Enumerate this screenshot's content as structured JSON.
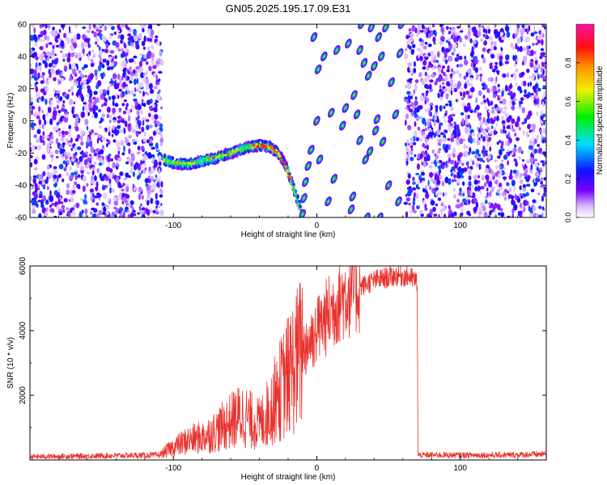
{
  "title": "GN05.2025.195.17.09.E31",
  "chart_data": [
    {
      "type": "heatmap",
      "xlabel": "Height of straight line (km)",
      "ylabel": "Frequency (Hz)",
      "xlim": [
        -200,
        160
      ],
      "ylim": [
        -60,
        60
      ],
      "xticks": [
        -100,
        0,
        100
      ],
      "yticks": [
        -60,
        -40,
        -20,
        0,
        20,
        40,
        60
      ],
      "colorbar": {
        "label": "Normalized spectral amplitude",
        "range": [
          0,
          1
        ],
        "ticks": [
          0.0,
          0.2,
          0.4,
          0.6,
          0.8
        ],
        "colormap": "rainbow (white-violet-blue-cyan-green-yellow-orange-red-pink)"
      },
      "noise_regions_x": [
        [
          -200,
          -108
        ],
        [
          62,
          160
        ]
      ],
      "empty_region_x": [
        -108,
        62
      ],
      "main_track": {
        "x": [
          -107,
          -100,
          -90,
          -80,
          -70,
          -60,
          -50,
          -40,
          -33,
          -27,
          -22,
          -18,
          -15,
          -12,
          -10
        ],
        "y": [
          -24,
          -26,
          -27,
          -25,
          -23,
          -20,
          -17,
          -15,
          -16,
          -20,
          -27,
          -37,
          -45,
          -53,
          -60
        ],
        "peak_amplitude": 0.95
      },
      "aliased_blobs": {
        "x": [
          -10,
          -9,
          -8,
          -6,
          -4,
          -2,
          0,
          1,
          2,
          5,
          8,
          10,
          12,
          14,
          18,
          20,
          22,
          24,
          25,
          26,
          28,
          30,
          30,
          31,
          33,
          34,
          35,
          36,
          37,
          38,
          40,
          41,
          42,
          43,
          44,
          45,
          46,
          48,
          50,
          52,
          55,
          57,
          58,
          59
        ],
        "y": [
          -58,
          -48,
          -38,
          -28,
          -18,
          52,
          0,
          32,
          -24,
          40,
          -50,
          5,
          -36,
          44,
          -3,
          8,
          48,
          -55,
          -47,
          16,
          4,
          44,
          -12,
          60,
          36,
          -24,
          -60,
          28,
          -19,
          58,
          34,
          -6,
          1,
          52,
          -60,
          40,
          -13,
          58,
          -40,
          24,
          4,
          -50,
          42,
          60
        ],
        "amplitude": 0.5
      }
    },
    {
      "type": "line",
      "xlabel": "Height of straight line (km)",
      "ylabel": "SNR (10 * v/v)",
      "xlim": [
        -200,
        160
      ],
      "ylim": [
        0,
        6000
      ],
      "xticks": [
        -100,
        0,
        100
      ],
      "yticks": [
        2000,
        4000,
        6000
      ],
      "color": "#e8332e",
      "profile": {
        "x": [
          -200,
          -110,
          -100,
          -90,
          -80,
          -70,
          -60,
          -52,
          -45,
          -40,
          -35,
          -30,
          -25,
          -20,
          -15,
          -10,
          -5,
          0,
          5,
          10,
          15,
          20,
          25,
          30,
          35,
          40,
          45,
          50,
          55,
          60,
          65,
          70,
          70.5,
          80,
          100,
          130,
          160
        ],
        "y": [
          100,
          150,
          400,
          600,
          700,
          900,
          1200,
          1400,
          1200,
          1100,
          1400,
          1800,
          2200,
          2600,
          3000,
          3400,
          3700,
          4000,
          4300,
          4600,
          4900,
          5100,
          5250,
          5350,
          5450,
          5550,
          5600,
          5650,
          5700,
          5700,
          5650,
          5500,
          150,
          150,
          150,
          150,
          180
        ]
      }
    }
  ]
}
